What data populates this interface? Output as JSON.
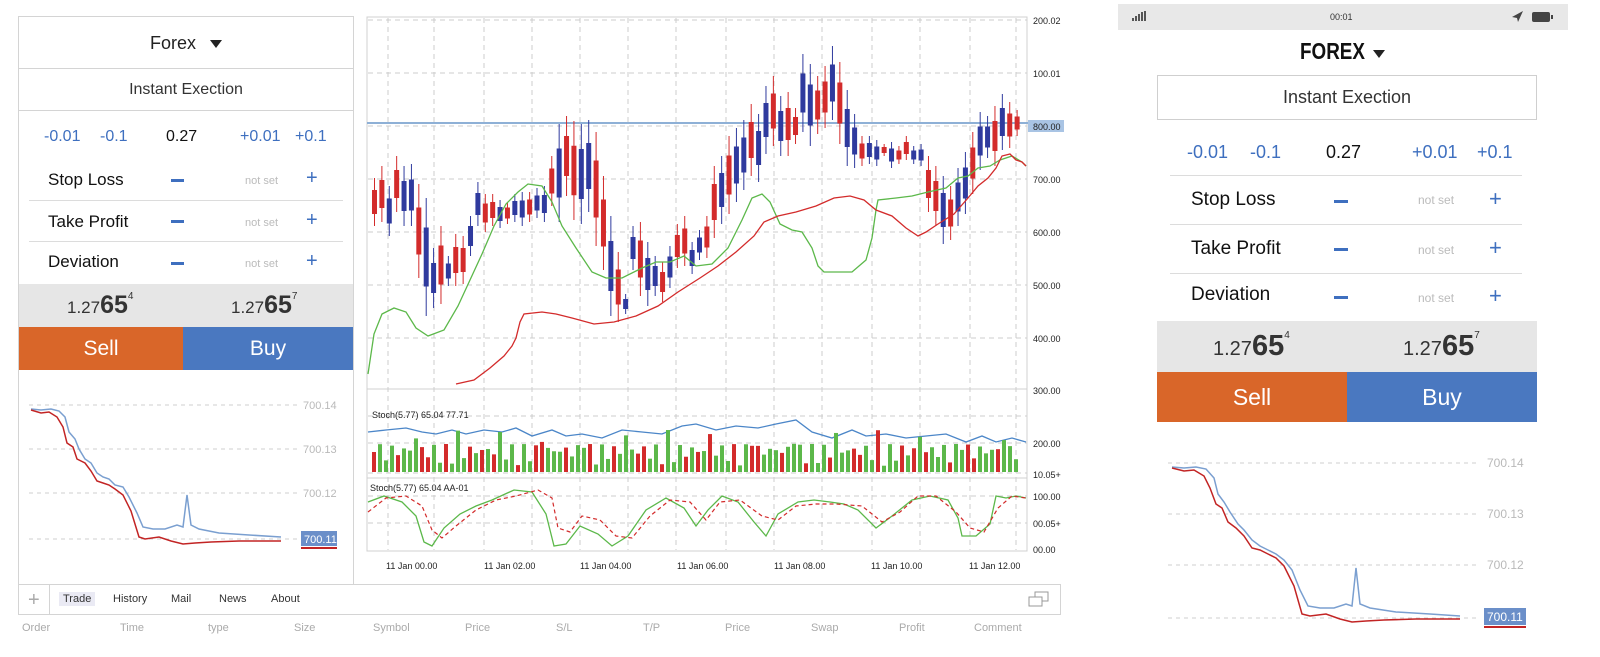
{
  "left": {
    "symbol": "Forex",
    "execution": "Instant Exection",
    "volume": {
      "m001": "-0.01",
      "m01": "-0.1",
      "value": "0.27",
      "p001": "+0.01",
      "p01": "+0.1"
    },
    "params": [
      {
        "label": "Stop Loss",
        "value": "not set"
      },
      {
        "label": "Take Profit",
        "value": "not set"
      },
      {
        "label": "Deviation",
        "value": "not set"
      }
    ],
    "bid": {
      "prefix": "1.27",
      "big": "65",
      "sup": "4"
    },
    "ask": {
      "prefix": "1.27",
      "big": "65",
      "sup": "7"
    },
    "sell_label": "Sell",
    "buy_label": "Buy",
    "mini_ticks": [
      "700.14",
      "700.13",
      "700.12"
    ],
    "mini_current": "700.11"
  },
  "main": {
    "price_ticks": [
      "200.02",
      "100.01",
      "800.00",
      "700.00",
      "600.00",
      "500.00",
      "400.00",
      "300.00"
    ],
    "stoch1_label": "Stoch(5.77) 65.04 77.71",
    "stoch1_ticks": [
      "200.00",
      "10.05+"
    ],
    "stoch2_label": "Stoch(5.77) 65.04 AA-01",
    "stoch2_ticks": [
      "100.00",
      "00.05+",
      "00.00"
    ],
    "time_labels": [
      "11 Jan 00.00",
      "11 Jan 02.00",
      "11 Jan 04.00",
      "11 Jan 06.00",
      "11 Jan 08.00",
      "11 Jan 10.00",
      "11 Jan 12.00"
    ]
  },
  "toolbar": {
    "plus": "+",
    "tabs": [
      "Trade",
      "History",
      "Mail",
      "News",
      "About"
    ],
    "columns": [
      "Order",
      "Time",
      "type",
      "Size",
      "Symbol",
      "Price",
      "S/L",
      "T/P",
      "Price",
      "Swap",
      "Profit",
      "Comment"
    ]
  },
  "phone": {
    "time": "00:01",
    "symbol": "FOREX",
    "execution": "Instant Exection",
    "volume": {
      "m001": "-0.01",
      "m01": "-0.1",
      "value": "0.27",
      "p001": "+0.01",
      "p01": "+0.1"
    },
    "params": [
      {
        "label": "Stop Loss",
        "value": "not set"
      },
      {
        "label": "Take Profit",
        "value": "not set"
      },
      {
        "label": "Deviation",
        "value": "not set"
      }
    ],
    "bid": {
      "prefix": "1.27",
      "big": "65",
      "sup": "4"
    },
    "ask": {
      "prefix": "1.27",
      "big": "65",
      "sup": "7"
    },
    "sell_label": "Sell",
    "buy_label": "Buy",
    "mini_ticks": [
      "700.14",
      "700.13",
      "700.12"
    ],
    "mini_current": "700.11"
  },
  "colors": {
    "sell": "#d96629",
    "buy": "#4a78c0",
    "link_blue": "#3e6fbf",
    "candle_up": "#d32b2b",
    "candle_down": "#2f3a9e",
    "ma_green": "#5cb84a",
    "ma_red": "#d32b2b",
    "stoch_blue": "#4b86c8"
  }
}
